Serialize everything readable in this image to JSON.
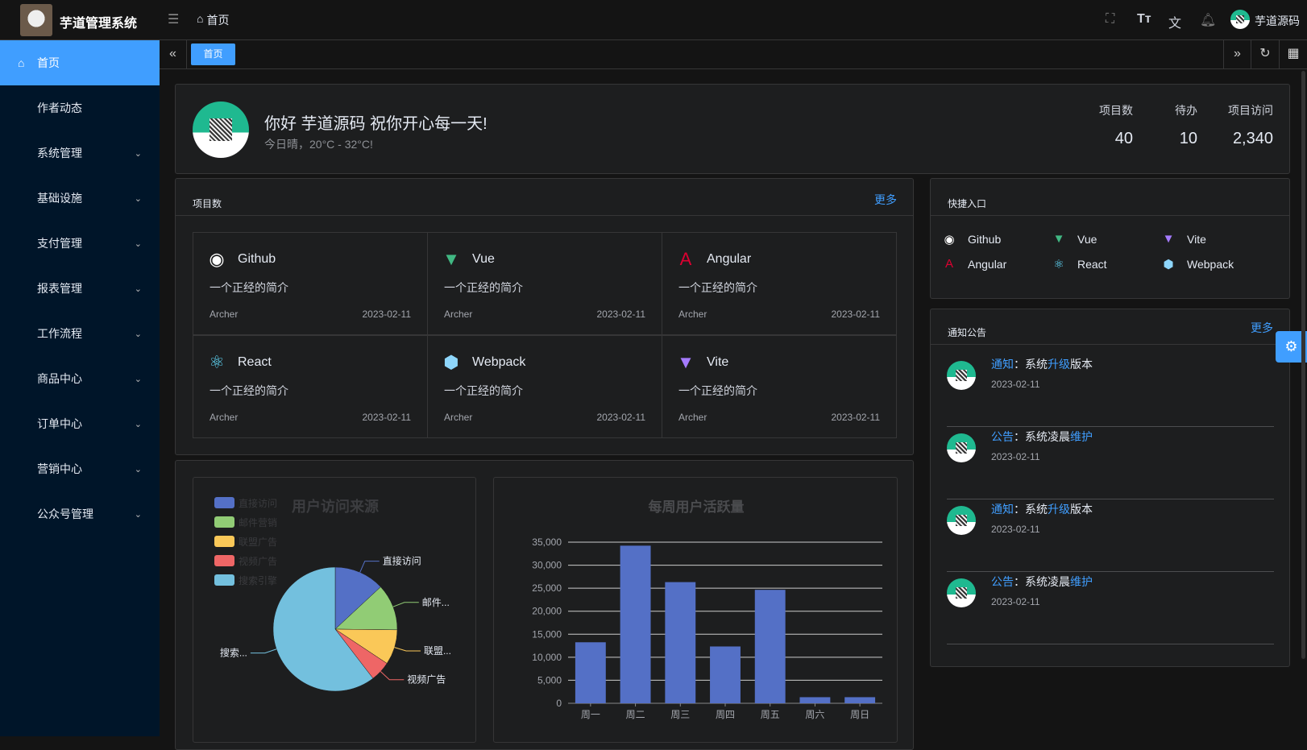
{
  "app": {
    "title": "芋道管理系统",
    "breadcrumb": "首页",
    "user": "芋道源码"
  },
  "header_icons": [
    "fullscreen-icon",
    "font-size-icon",
    "translate-icon",
    "bell-icon"
  ],
  "sidebar": {
    "items": [
      {
        "label": "首页",
        "active": true
      },
      {
        "label": "作者动态"
      },
      {
        "label": "系统管理",
        "expandable": true
      },
      {
        "label": "基础设施",
        "expandable": true
      },
      {
        "label": "支付管理",
        "expandable": true
      },
      {
        "label": "报表管理",
        "expandable": true
      },
      {
        "label": "工作流程",
        "expandable": true
      },
      {
        "label": "商品中心",
        "expandable": true
      },
      {
        "label": "订单中心",
        "expandable": true
      },
      {
        "label": "营销中心",
        "expandable": true
      },
      {
        "label": "公众号管理",
        "expandable": true
      }
    ]
  },
  "tabs": [
    {
      "label": "首页",
      "active": true
    }
  ],
  "welcome": {
    "greeting": "你好 芋道源码 祝你开心每一天!",
    "weather": "今日晴，20°C - 32°C!",
    "stats": [
      {
        "label": "项目数",
        "value": "40"
      },
      {
        "label": "待办",
        "value": "10"
      },
      {
        "label": "项目访问",
        "value": "2,340"
      }
    ]
  },
  "projects": {
    "title": "项目数",
    "more": "更多",
    "items": [
      {
        "name": "Github",
        "icon": "github-icon",
        "desc": "一个正经的简介",
        "author": "Archer",
        "date": "2023-02-11"
      },
      {
        "name": "Vue",
        "icon": "vue-icon",
        "desc": "一个正经的简介",
        "author": "Archer",
        "date": "2023-02-11"
      },
      {
        "name": "Angular",
        "icon": "angular-icon",
        "desc": "一个正经的简介",
        "author": "Archer",
        "date": "2023-02-11"
      },
      {
        "name": "React",
        "icon": "react-icon",
        "desc": "一个正经的简介",
        "author": "Archer",
        "date": "2023-02-11"
      },
      {
        "name": "Webpack",
        "icon": "webpack-icon",
        "desc": "一个正经的简介",
        "author": "Archer",
        "date": "2023-02-11"
      },
      {
        "name": "Vite",
        "icon": "vite-icon",
        "desc": "一个正经的简介",
        "author": "Archer",
        "date": "2023-02-11"
      }
    ]
  },
  "shortcuts": {
    "title": "快捷入口",
    "items": [
      {
        "name": "Github"
      },
      {
        "name": "Vue"
      },
      {
        "name": "Vite"
      },
      {
        "name": "Angular"
      },
      {
        "name": "React"
      },
      {
        "name": "Webpack"
      }
    ]
  },
  "notices": {
    "title": "通知公告",
    "more": "更多",
    "items": [
      {
        "type": "通知",
        "sep": "：",
        "pre": "系统",
        "hl": "升级",
        "post": "版本",
        "date": "2023-02-11"
      },
      {
        "type": "公告",
        "sep": "：",
        "pre": "系统凌晨",
        "hl": "维护",
        "post": "",
        "date": "2023-02-11"
      },
      {
        "type": "通知",
        "sep": "：",
        "pre": "系统",
        "hl": "升级",
        "post": "版本",
        "date": "2023-02-11"
      },
      {
        "type": "公告",
        "sep": "：",
        "pre": "系统凌晨",
        "hl": "维护",
        "post": "",
        "date": "2023-02-11"
      }
    ]
  },
  "chart_data": [
    {
      "type": "pie",
      "title": "用户访问来源",
      "legend": "top-left",
      "categories": [
        "直接访问",
        "邮件营销",
        "联盟广告",
        "视频广告",
        "搜索引擎"
      ],
      "slice_labels": [
        "直接访问",
        "邮件...",
        "联盟...",
        "视频广告",
        "搜索..."
      ],
      "values": [
        335,
        310,
        234,
        135,
        1548
      ],
      "colors": [
        "#5470c6",
        "#91cc75",
        "#fac858",
        "#ee6666",
        "#73c0de"
      ]
    },
    {
      "type": "bar",
      "title": "每周用户活跃量",
      "categories": [
        "周一",
        "周二",
        "周三",
        "周四",
        "周五",
        "周六",
        "周日"
      ],
      "values": [
        13253,
        34235,
        26321,
        12340,
        24643,
        1322,
        1324
      ],
      "ylim": [
        0,
        35000
      ],
      "yticks": [
        "0",
        "5,000",
        "10,000",
        "15,000",
        "20,000",
        "25,000",
        "30,000",
        "35,000"
      ],
      "grid": true,
      "color": "#5470c6"
    }
  ]
}
